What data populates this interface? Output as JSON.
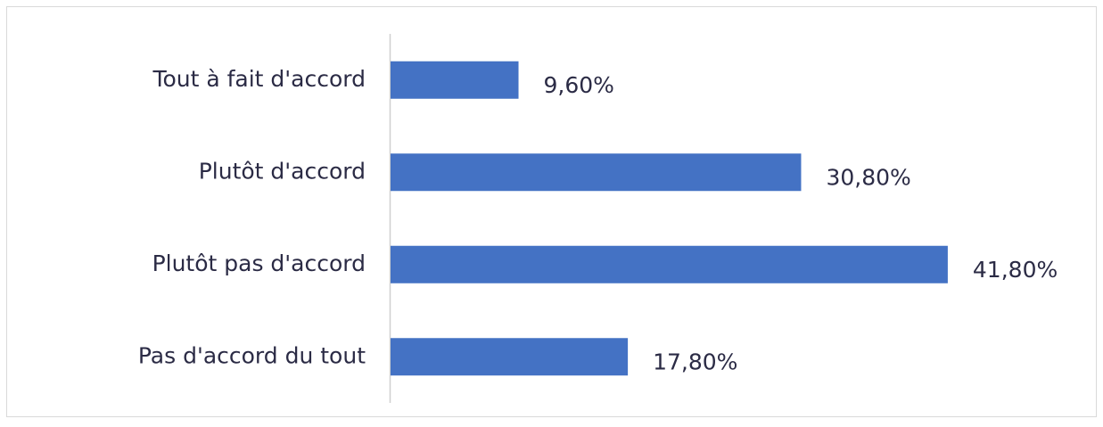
{
  "chart_data": {
    "type": "bar",
    "orientation": "horizontal",
    "categories": [
      "Tout à fait d'accord",
      "Plutôt d'accord",
      "Plutôt pas d'accord",
      "Pas d'accord du tout"
    ],
    "values": [
      9.6,
      30.8,
      41.8,
      17.8
    ],
    "value_labels": [
      "9,60%",
      "30,80%",
      "41,80%",
      "17,80%"
    ],
    "color": "#4472c4"
  }
}
